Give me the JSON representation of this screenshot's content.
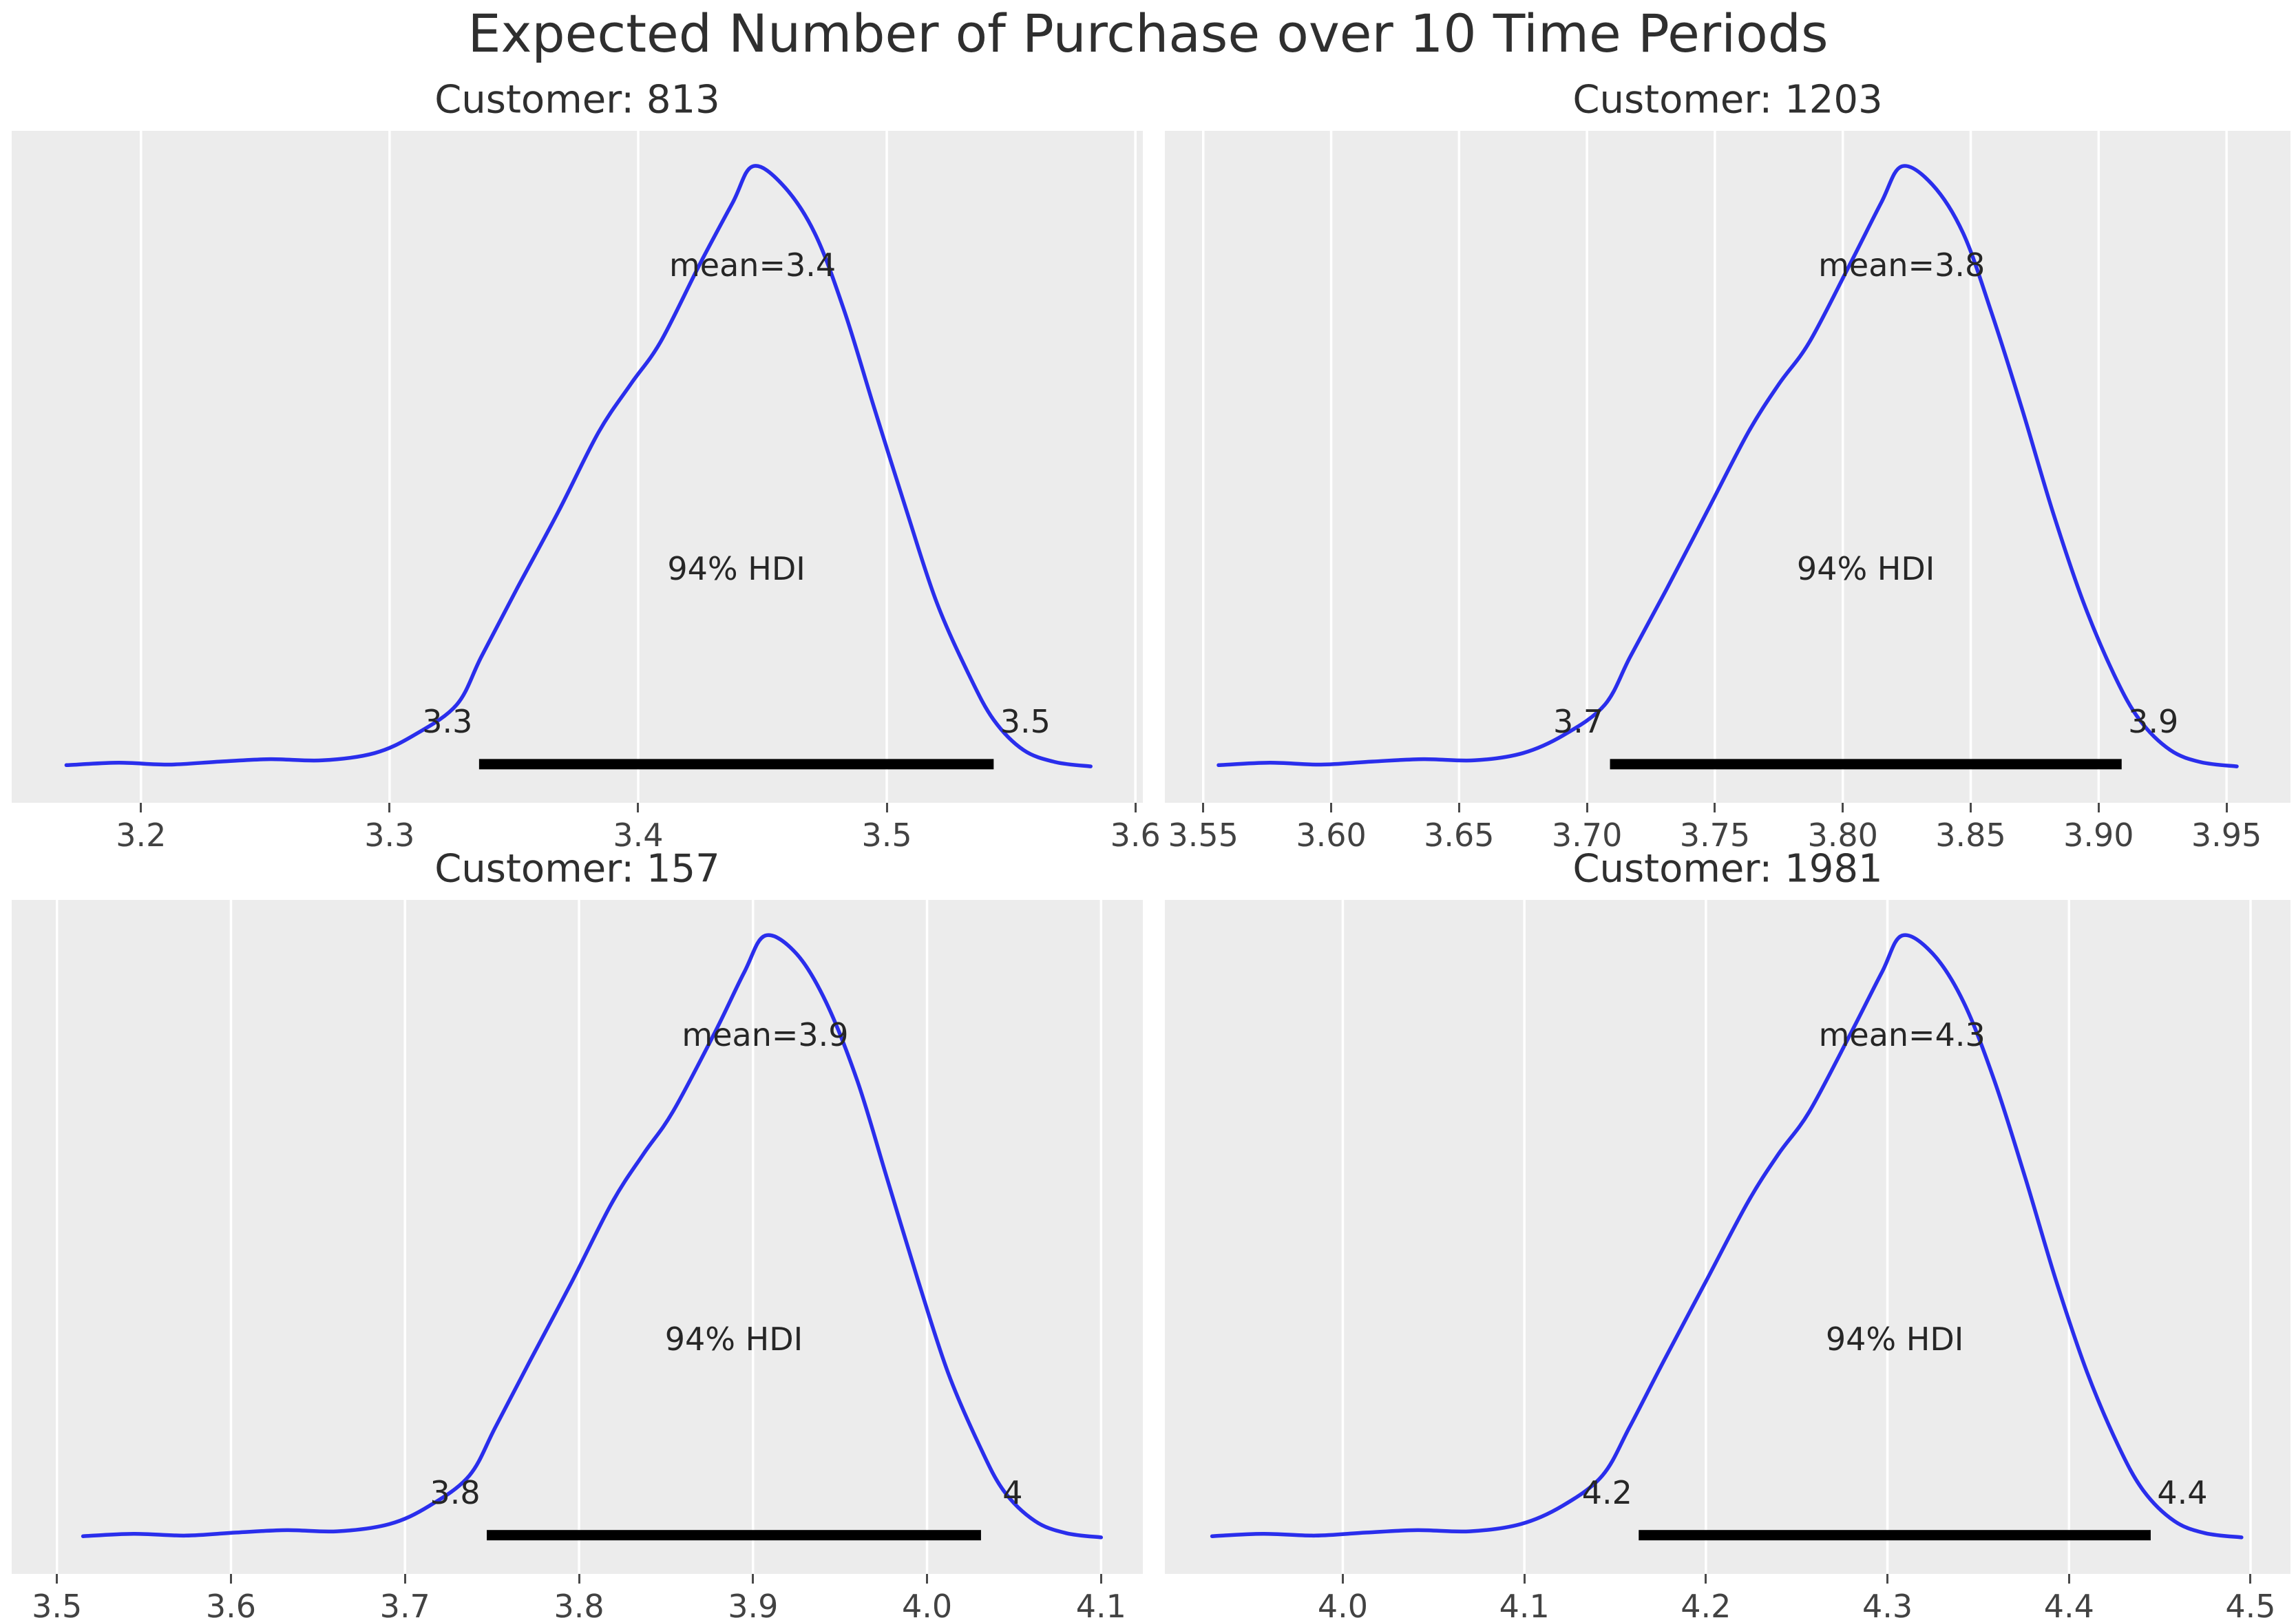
{
  "figure": {
    "title": "Expected Number of Purchase over 10 Time Periods",
    "panel_bg": "#ececec",
    "grid_color": "#ffffff",
    "curve_color": "#2a2eec",
    "hdi_bar_color": "#000000",
    "text_color": "#262626"
  },
  "chart_data": [
    {
      "type": "kde",
      "title": "Customer: 813",
      "customer": "813",
      "mean": 3.4,
      "mean_label": "mean=3.4",
      "hdi_text": "94% HDI",
      "hdi_low": 3.336,
      "hdi_high": 3.543,
      "hdi_low_label": "3.3",
      "hdi_high_label": "3.5",
      "mode": 3.446,
      "xlim": [
        3.148,
        3.603
      ],
      "xtick_values": [
        3.2,
        3.3,
        3.4,
        3.5,
        3.6
      ],
      "xtick_labels": [
        "3.2",
        "3.3",
        "3.4",
        "3.5",
        "3.6"
      ],
      "curve": {
        "x": [
          3.17,
          3.191,
          3.211,
          3.232,
          3.252,
          3.273,
          3.294,
          3.31,
          3.327,
          3.337,
          3.351,
          3.368,
          3.384,
          3.397,
          3.409,
          3.425,
          3.438,
          3.446,
          3.458,
          3.471,
          3.483,
          3.495,
          3.508,
          3.52,
          3.533,
          3.543,
          3.555,
          3.568,
          3.582
        ],
        "density": [
          0.01,
          0.014,
          0.011,
          0.016,
          0.02,
          0.018,
          0.03,
          0.06,
          0.11,
          0.19,
          0.3,
          0.43,
          0.56,
          0.64,
          0.71,
          0.84,
          0.94,
          1.0,
          0.97,
          0.89,
          0.76,
          0.6,
          0.43,
          0.28,
          0.16,
          0.085,
          0.035,
          0.015,
          0.008
        ]
      }
    },
    {
      "type": "kde",
      "title": "Customer: 1203",
      "customer": "1203",
      "mean": 3.8,
      "mean_label": "mean=3.8",
      "hdi_text": "94% HDI",
      "hdi_low": 3.709,
      "hdi_high": 3.909,
      "hdi_low_label": "3.7",
      "hdi_high_label": "3.9",
      "mode": 3.823,
      "xlim": [
        3.535,
        3.975
      ],
      "xtick_values": [
        3.55,
        3.6,
        3.65,
        3.7,
        3.75,
        3.8,
        3.85,
        3.9,
        3.95
      ],
      "xtick_labels": [
        "3.55",
        "3.60",
        "3.65",
        "3.70",
        "3.75",
        "3.80",
        "3.85",
        "3.90",
        "3.95"
      ],
      "curve": {
        "x": [
          3.556,
          3.576,
          3.596,
          3.616,
          3.636,
          3.656,
          3.675,
          3.691,
          3.707,
          3.717,
          3.731,
          3.747,
          3.763,
          3.775,
          3.787,
          3.803,
          3.815,
          3.823,
          3.835,
          3.847,
          3.858,
          3.87,
          3.882,
          3.894,
          3.906,
          3.916,
          3.928,
          3.94,
          3.954
        ],
        "density": [
          0.01,
          0.014,
          0.011,
          0.016,
          0.02,
          0.018,
          0.03,
          0.06,
          0.11,
          0.19,
          0.3,
          0.43,
          0.56,
          0.64,
          0.71,
          0.84,
          0.94,
          1.0,
          0.97,
          0.89,
          0.76,
          0.6,
          0.43,
          0.28,
          0.16,
          0.085,
          0.035,
          0.015,
          0.008
        ]
      }
    },
    {
      "type": "kde",
      "title": "Customer: 157",
      "customer": "157",
      "mean": 3.9,
      "mean_label": "mean=3.9",
      "hdi_text": "94% HDI",
      "hdi_low": 3.747,
      "hdi_high": 4.031,
      "hdi_low_label": "3.8",
      "hdi_high_label": "4",
      "mode": 3.907,
      "xlim": [
        3.474,
        4.124
      ],
      "xtick_values": [
        3.5,
        3.6,
        3.7,
        3.8,
        3.9,
        4.0,
        4.1
      ],
      "xtick_labels": [
        "3.5",
        "3.6",
        "3.7",
        "3.8",
        "3.9",
        "4.0",
        "4.1"
      ],
      "curve": {
        "x": [
          3.515,
          3.544,
          3.574,
          3.603,
          3.632,
          3.661,
          3.691,
          3.714,
          3.737,
          3.752,
          3.772,
          3.796,
          3.819,
          3.837,
          3.854,
          3.878,
          3.895,
          3.907,
          3.925,
          3.942,
          3.96,
          3.977,
          3.995,
          4.012,
          4.03,
          4.044,
          4.062,
          4.08,
          4.1
        ],
        "density": [
          0.01,
          0.014,
          0.011,
          0.016,
          0.02,
          0.018,
          0.03,
          0.06,
          0.11,
          0.19,
          0.3,
          0.43,
          0.56,
          0.64,
          0.71,
          0.84,
          0.94,
          1.0,
          0.97,
          0.89,
          0.76,
          0.6,
          0.43,
          0.28,
          0.16,
          0.085,
          0.035,
          0.015,
          0.008
        ]
      }
    },
    {
      "type": "kde",
      "title": "Customer: 1981",
      "customer": "1981",
      "mean": 4.3,
      "mean_label": "mean=4.3",
      "hdi_text": "94% HDI",
      "hdi_low": 4.163,
      "hdi_high": 4.445,
      "hdi_low_label": "4.2",
      "hdi_high_label": "4.4",
      "mode": 4.308,
      "xlim": [
        3.902,
        4.522
      ],
      "xtick_values": [
        4.0,
        4.1,
        4.2,
        4.3,
        4.4,
        4.5
      ],
      "xtick_labels": [
        "4.0",
        "4.1",
        "4.2",
        "4.3",
        "4.4",
        "4.5"
      ],
      "curve": {
        "x": [
          3.928,
          3.956,
          3.985,
          4.013,
          4.041,
          4.07,
          4.098,
          4.121,
          4.143,
          4.158,
          4.177,
          4.2,
          4.223,
          4.24,
          4.257,
          4.28,
          4.297,
          4.308,
          4.325,
          4.342,
          4.359,
          4.376,
          4.393,
          4.41,
          4.427,
          4.441,
          4.458,
          4.475,
          4.495
        ],
        "density": [
          0.01,
          0.014,
          0.011,
          0.016,
          0.02,
          0.018,
          0.03,
          0.06,
          0.11,
          0.19,
          0.3,
          0.43,
          0.56,
          0.64,
          0.71,
          0.84,
          0.94,
          1.0,
          0.97,
          0.89,
          0.76,
          0.6,
          0.43,
          0.28,
          0.16,
          0.085,
          0.035,
          0.015,
          0.008
        ]
      }
    }
  ]
}
